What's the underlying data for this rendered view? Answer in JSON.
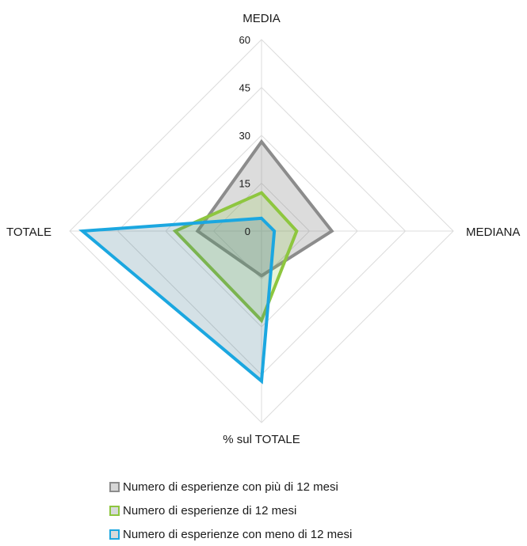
{
  "chart_data": {
    "type": "radar",
    "axes": [
      "MEDIA",
      "MEDIANA",
      "% sul TOTALE",
      "TOTALE"
    ],
    "ticks": [
      "0",
      "15",
      "30",
      "45",
      "60"
    ],
    "range": [
      0,
      60
    ],
    "grid": true,
    "legend_position": "bottom-left",
    "series": [
      {
        "name": "Numero di esperienze con più di 12 mesi",
        "values": [
          28,
          22,
          14,
          20
        ],
        "color": "#8c8c8c",
        "fill": "rgba(140,140,140,0.30)"
      },
      {
        "name": "Numero di esperienze di 12 mesi",
        "values": [
          12,
          11,
          28,
          27
        ],
        "color": "#8ec63f",
        "fill": "rgba(142,198,63,0.20)"
      },
      {
        "name": "Numero di esperienze con meno di 12 mesi",
        "values": [
          4,
          4,
          47,
          56
        ],
        "color": "#1ba7e0",
        "fill": "rgba(60,120,140,0.22)"
      }
    ]
  }
}
